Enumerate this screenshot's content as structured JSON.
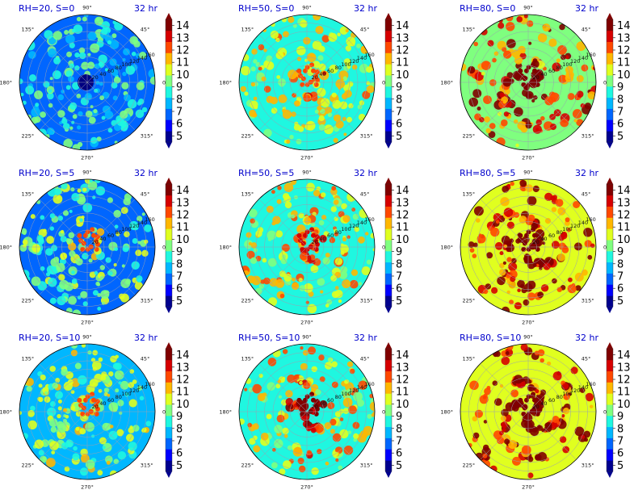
{
  "chart_data": [
    {
      "type": "heatmap",
      "label_left": "RH=20, S=0",
      "label_right": "32 hr",
      "rh": 20,
      "s": 0,
      "colorbar_ticks": [
        "5",
        "6",
        "7",
        "8",
        "9",
        "10",
        "11",
        "12",
        "13",
        "14"
      ],
      "angle_labels": [
        "90°",
        "45°",
        "0°",
        "315°",
        "270°",
        "225°",
        "180°",
        "135°"
      ],
      "radial_ticks": [
        "20",
        "40",
        "60",
        "80",
        "100",
        "120",
        "140",
        "160"
      ],
      "intensity": 0.18,
      "spiral": 0.0,
      "core_hot": 0
    },
    {
      "type": "heatmap",
      "label_left": "RH=50, S=0",
      "label_right": "32 hr",
      "rh": 50,
      "s": 0,
      "colorbar_ticks": [
        "5",
        "6",
        "7",
        "8",
        "9",
        "10",
        "11",
        "12",
        "13",
        "14"
      ],
      "angle_labels": [
        "90°",
        "45°",
        "0°",
        "315°",
        "270°",
        "225°",
        "180°",
        "135°"
      ],
      "radial_ticks": [
        "20",
        "40",
        "60",
        "80",
        "100",
        "120",
        "140",
        "160"
      ],
      "intensity": 0.36,
      "spiral": 0.35,
      "core_hot": 0.3
    },
    {
      "type": "heatmap",
      "label_left": "RH=80, S=0",
      "label_right": "32 hr",
      "rh": 80,
      "s": 0,
      "colorbar_ticks": [
        "5",
        "6",
        "7",
        "8",
        "9",
        "10",
        "11",
        "12",
        "13",
        "14"
      ],
      "angle_labels": [
        "90°",
        "45°",
        "0°",
        "315°",
        "270°",
        "225°",
        "180°",
        "135°"
      ],
      "radial_ticks": [
        "20",
        "40",
        "60",
        "80",
        "100",
        "120",
        "140",
        "160"
      ],
      "intensity": 0.52,
      "spiral": 0.8,
      "core_hot": 1
    },
    {
      "type": "heatmap",
      "label_left": "RH=20, S=5",
      "label_right": "32 hr",
      "rh": 20,
      "s": 5,
      "colorbar_ticks": [
        "5",
        "6",
        "7",
        "8",
        "9",
        "10",
        "11",
        "12",
        "13",
        "14"
      ],
      "angle_labels": [
        "90°",
        "45°",
        "0°",
        "315°",
        "270°",
        "225°",
        "180°",
        "135°"
      ],
      "radial_ticks": [
        "20",
        "40",
        "60",
        "80",
        "100",
        "120",
        "140",
        "160"
      ],
      "intensity": 0.24,
      "spiral": 0.2,
      "core_hot": 0.2
    },
    {
      "type": "heatmap",
      "label_left": "RH=50, S=5",
      "label_right": "32 hr",
      "rh": 50,
      "s": 5,
      "colorbar_ticks": [
        "5",
        "6",
        "7",
        "8",
        "9",
        "10",
        "11",
        "12",
        "13",
        "14"
      ],
      "angle_labels": [
        "90°",
        "45°",
        "0°",
        "315°",
        "270°",
        "225°",
        "180°",
        "135°"
      ],
      "radial_ticks": [
        "20",
        "40",
        "60",
        "80",
        "100",
        "120",
        "140",
        "160"
      ],
      "intensity": 0.36,
      "spiral": 0.6,
      "core_hot": 0.5
    },
    {
      "type": "heatmap",
      "label_left": "RH=80, S=5",
      "label_right": "32 hr",
      "rh": 80,
      "s": 5,
      "colorbar_ticks": [
        "5",
        "6",
        "7",
        "8",
        "9",
        "10",
        "11",
        "12",
        "13",
        "14"
      ],
      "angle_labels": [
        "90°",
        "45°",
        "0°",
        "315°",
        "270°",
        "225°",
        "180°",
        "135°"
      ],
      "radial_ticks": [
        "20",
        "40",
        "60",
        "80",
        "100",
        "120",
        "140",
        "160"
      ],
      "intensity": 0.55,
      "spiral": 0.9,
      "core_hot": 1
    },
    {
      "type": "heatmap",
      "label_left": "RH=20, S=10",
      "label_right": "32 hr",
      "rh": 20,
      "s": 10,
      "colorbar_ticks": [
        "5",
        "6",
        "7",
        "8",
        "9",
        "10",
        "11",
        "12",
        "13",
        "14"
      ],
      "angle_labels": [
        "90°",
        "45°",
        "0°",
        "315°",
        "270°",
        "225°",
        "180°",
        "135°"
      ],
      "radial_ticks": [
        "20",
        "40",
        "60",
        "80",
        "100",
        "120",
        "140",
        "160"
      ],
      "intensity": 0.26,
      "spiral": 0.4,
      "core_hot": 0.3
    },
    {
      "type": "heatmap",
      "label_left": "RH=50, S=10",
      "label_right": "32 hr",
      "rh": 50,
      "s": 10,
      "colorbar_ticks": [
        "5",
        "6",
        "7",
        "8",
        "9",
        "10",
        "11",
        "12",
        "13",
        "14"
      ],
      "angle_labels": [
        "90°",
        "45°",
        "0°",
        "315°",
        "270°",
        "225°",
        "180°",
        "135°"
      ],
      "radial_ticks": [
        "20",
        "40",
        "60",
        "80",
        "100",
        "120",
        "140",
        "160"
      ],
      "intensity": 0.36,
      "spiral": 0.8,
      "core_hot": 0.9
    },
    {
      "type": "heatmap",
      "label_left": "RH=80, S=10",
      "label_right": "32 hr",
      "rh": 80,
      "s": 10,
      "colorbar_ticks": [
        "5",
        "6",
        "7",
        "8",
        "9",
        "10",
        "11",
        "12",
        "13",
        "14"
      ],
      "angle_labels": [
        "90°",
        "45°",
        "0°",
        "315°",
        "270°",
        "225°",
        "180°",
        "135°"
      ],
      "radial_ticks": [
        "20",
        "40",
        "60",
        "80",
        "100",
        "120",
        "140",
        "160"
      ],
      "intensity": 0.58,
      "spiral": 1.0,
      "core_hot": 1
    }
  ]
}
